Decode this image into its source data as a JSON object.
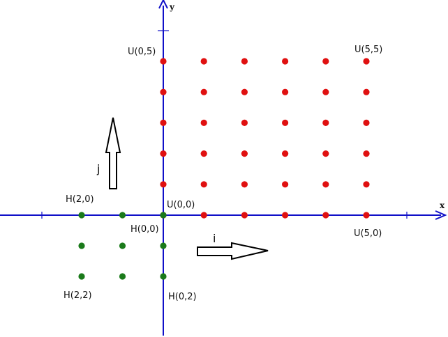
{
  "colors": {
    "axis": "#1010c8",
    "u_points": "#e01010",
    "h_points": "#1a7a1a",
    "arrow_stroke": "#000000",
    "arrow_fill": "#ffffff"
  },
  "axes": {
    "x_label": "x",
    "y_label": "y"
  },
  "grid": {
    "u_points": {
      "columns": [
        0,
        1,
        2,
        3,
        4,
        5
      ],
      "rows": [
        0,
        1,
        2,
        3,
        4,
        5
      ]
    },
    "h_points": {
      "columns": [
        0,
        1,
        2
      ],
      "rows": [
        0,
        1,
        2
      ]
    }
  },
  "labels": {
    "u00": "U(0,0)",
    "u05": "U(0,5)",
    "u55": "U(5,5)",
    "u50": "U(5,0)",
    "h00": "H(0,0)",
    "h20": "H(2,0)",
    "h22": "H(2,2)",
    "h02": "H(0,2)"
  },
  "vectors": {
    "i": "i",
    "j": "j"
  }
}
